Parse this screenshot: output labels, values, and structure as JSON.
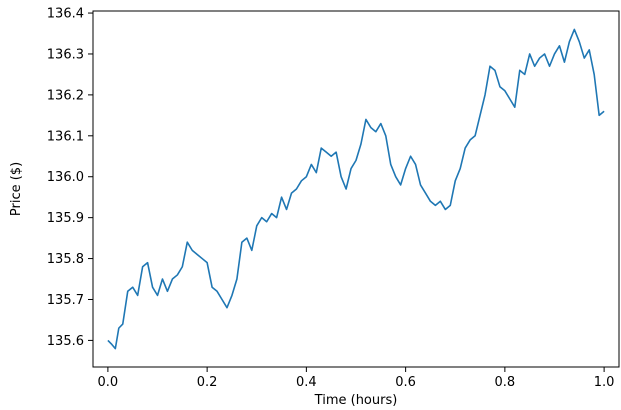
{
  "chart_data": {
    "type": "line",
    "title": "",
    "xlabel": "Time (hours)",
    "ylabel": "Price ($)",
    "xlim": [
      -0.03,
      1.03
    ],
    "ylim": [
      135.535,
      136.405
    ],
    "x_ticks": [
      0.0,
      0.2,
      0.4,
      0.6,
      0.8,
      1.0
    ],
    "x_tick_labels": [
      "0.0",
      "0.2",
      "0.4",
      "0.6",
      "0.8",
      "1.0"
    ],
    "y_ticks": [
      135.6,
      135.7,
      135.8,
      135.9,
      136.0,
      136.1,
      136.2,
      136.3,
      136.4
    ],
    "y_tick_labels": [
      "135.6",
      "135.7",
      "135.8",
      "135.9",
      "136.0",
      "136.1",
      "136.2",
      "136.3",
      "136.4"
    ],
    "grid": false,
    "legend": "none",
    "line_color": "#1f77b4",
    "series": [
      {
        "x": [
          0.0,
          0.008,
          0.015,
          0.022,
          0.03,
          0.04,
          0.05,
          0.06,
          0.07,
          0.08,
          0.09,
          0.1,
          0.11,
          0.12,
          0.13,
          0.14,
          0.15,
          0.16,
          0.17,
          0.18,
          0.19,
          0.2,
          0.21,
          0.22,
          0.23,
          0.24,
          0.25,
          0.26,
          0.27,
          0.28,
          0.29,
          0.3,
          0.31,
          0.32,
          0.33,
          0.34,
          0.35,
          0.36,
          0.37,
          0.38,
          0.39,
          0.4,
          0.41,
          0.42,
          0.43,
          0.44,
          0.45,
          0.46,
          0.47,
          0.48,
          0.49,
          0.5,
          0.51,
          0.52,
          0.53,
          0.54,
          0.55,
          0.56,
          0.57,
          0.58,
          0.59,
          0.6,
          0.61,
          0.62,
          0.63,
          0.64,
          0.65,
          0.66,
          0.67,
          0.68,
          0.69,
          0.7,
          0.71,
          0.72,
          0.73,
          0.74,
          0.75,
          0.76,
          0.77,
          0.78,
          0.79,
          0.8,
          0.81,
          0.82,
          0.83,
          0.84,
          0.85,
          0.86,
          0.87,
          0.88,
          0.89,
          0.9,
          0.91,
          0.92,
          0.93,
          0.94,
          0.95,
          0.96,
          0.97,
          0.98,
          0.99,
          1.0
        ],
        "y": [
          135.6,
          135.59,
          135.58,
          135.63,
          135.64,
          135.72,
          135.73,
          135.71,
          135.78,
          135.79,
          135.73,
          135.71,
          135.75,
          135.72,
          135.75,
          135.76,
          135.78,
          135.84,
          135.82,
          135.81,
          135.8,
          135.79,
          135.73,
          135.72,
          135.7,
          135.68,
          135.71,
          135.75,
          135.84,
          135.85,
          135.82,
          135.88,
          135.9,
          135.89,
          135.91,
          135.9,
          135.95,
          135.92,
          135.96,
          135.97,
          135.99,
          136.0,
          136.03,
          136.01,
          136.07,
          136.06,
          136.05,
          136.06,
          136.0,
          135.97,
          136.02,
          136.04,
          136.08,
          136.14,
          136.12,
          136.11,
          136.13,
          136.1,
          136.03,
          136.0,
          135.98,
          136.02,
          136.05,
          136.03,
          135.98,
          135.96,
          135.94,
          135.93,
          135.94,
          135.92,
          135.93,
          135.99,
          136.02,
          136.07,
          136.09,
          136.1,
          136.15,
          136.2,
          136.27,
          136.26,
          136.22,
          136.21,
          136.19,
          136.17,
          136.26,
          136.25,
          136.3,
          136.27,
          136.29,
          136.3,
          136.27,
          136.3,
          136.32,
          136.28,
          136.33,
          136.36,
          136.33,
          136.29,
          136.31,
          136.25,
          136.15,
          136.16
        ]
      }
    ]
  }
}
